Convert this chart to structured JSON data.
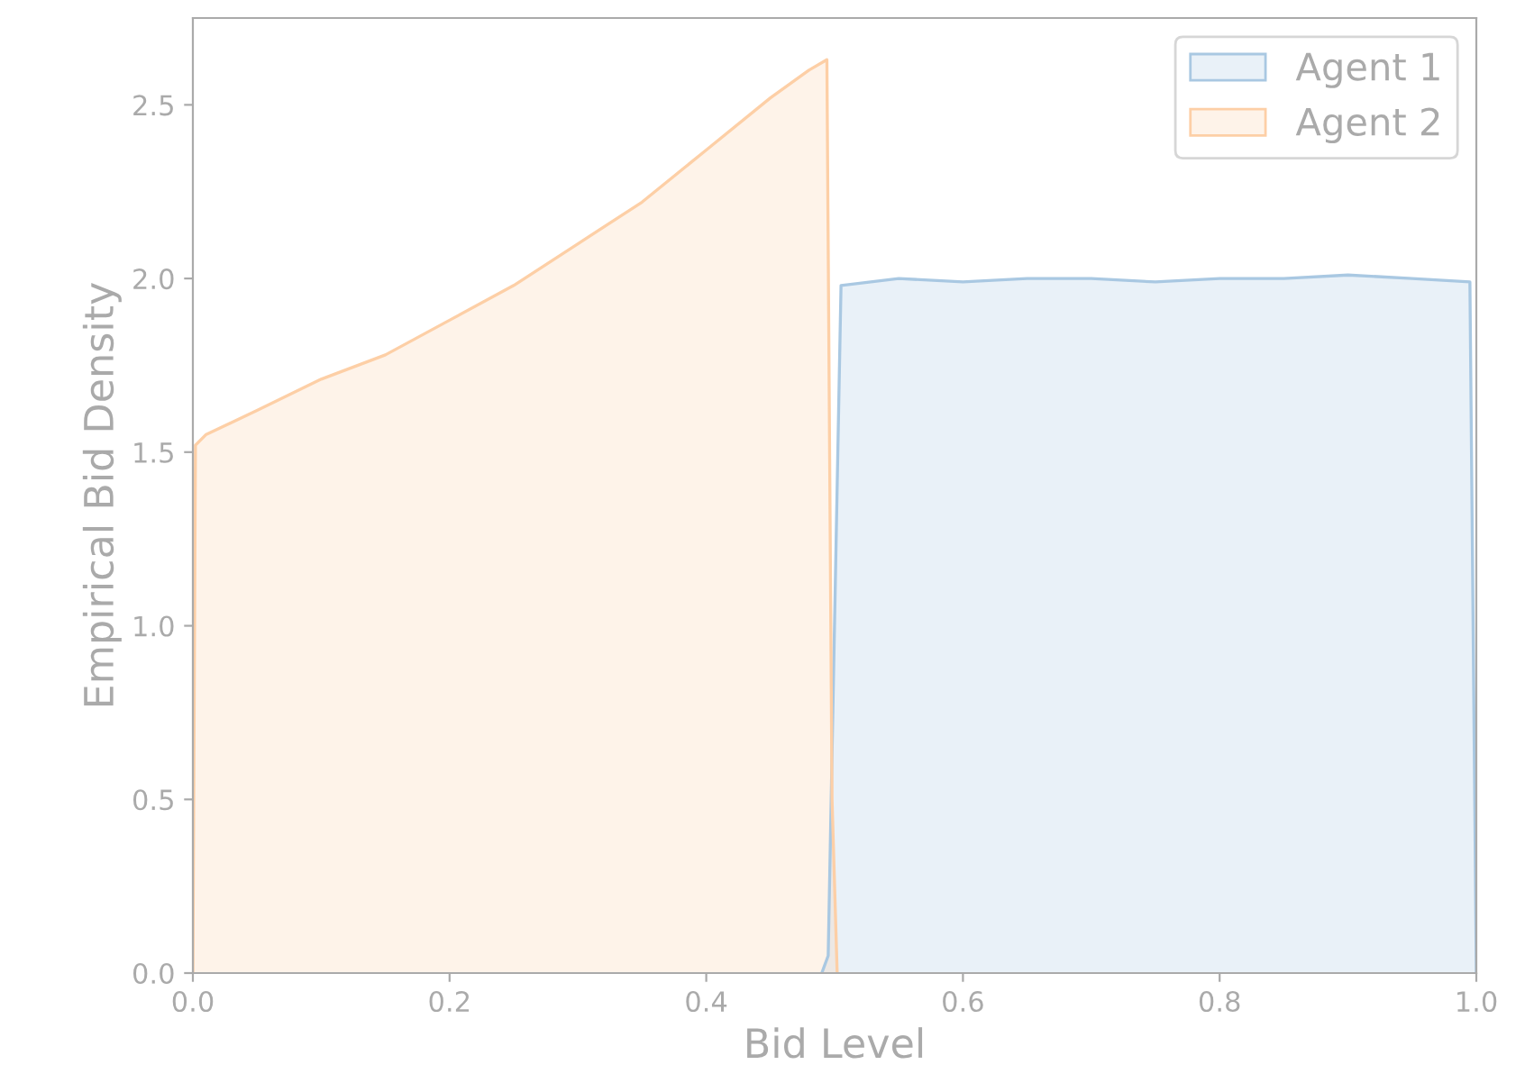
{
  "chart_data": {
    "type": "area",
    "xlabel": "Bid Level",
    "ylabel": "Empirical Bid Density",
    "xlim": [
      0.0,
      1.0
    ],
    "ylim": [
      0.0,
      2.75
    ],
    "xticks": [
      {
        "value": 0,
        "label": "0.0"
      },
      {
        "value": 0.2,
        "label": "0.2"
      },
      {
        "value": 0.4,
        "label": "0.4"
      },
      {
        "value": 0.6,
        "label": "0.6"
      },
      {
        "value": 0.8,
        "label": "0.8"
      },
      {
        "value": 1,
        "label": "1.0"
      }
    ],
    "yticks": [
      {
        "value": 0,
        "label": "0.0"
      },
      {
        "value": 0.5,
        "label": "0.5"
      },
      {
        "value": 1,
        "label": "1.0"
      },
      {
        "value": 1.5,
        "label": "1.5"
      },
      {
        "value": 2,
        "label": "2.0"
      },
      {
        "value": 2.5,
        "label": "2.5"
      }
    ],
    "grid": false,
    "legend": "top right",
    "series": [
      {
        "name": "Agent 1",
        "color": "#a9c8e2",
        "x": [
          0.49,
          0.495,
          0.505,
          0.55,
          0.6,
          0.65,
          0.7,
          0.75,
          0.8,
          0.85,
          0.9,
          0.95,
          0.995,
          1.0
        ],
        "values": [
          0,
          0.05,
          1.98,
          2.0,
          1.99,
          2.0,
          2.0,
          1.99,
          2.0,
          2.0,
          2.01,
          2.0,
          1.99,
          0
        ]
      },
      {
        "name": "Agent 2",
        "color": "#fdcfa6",
        "x": [
          0,
          0.002,
          0.01,
          0.05,
          0.1,
          0.15,
          0.2,
          0.25,
          0.3,
          0.35,
          0.4,
          0.45,
          0.48,
          0.494,
          0.498,
          0.502
        ],
        "values": [
          0,
          1.52,
          1.55,
          1.62,
          1.71,
          1.78,
          1.88,
          1.98,
          2.1,
          2.22,
          2.37,
          2.52,
          2.6,
          2.63,
          0.5,
          0
        ]
      }
    ]
  }
}
